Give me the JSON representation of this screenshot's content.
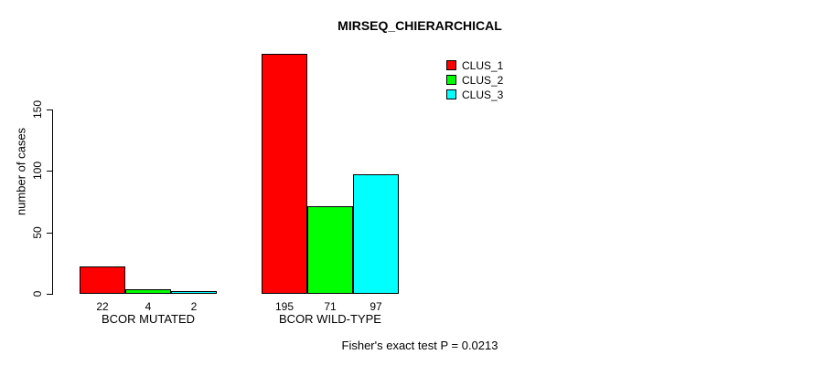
{
  "chart_data": {
    "type": "bar",
    "title": "MIRSEQ_CHIERARCHICAL",
    "ylabel": "number of cases",
    "xlabel": "",
    "annotation": "Fisher's exact test P = 0.0213",
    "categories": [
      "BCOR MUTATED",
      "BCOR WILD-TYPE"
    ],
    "series": [
      {
        "name": "CLUS_1",
        "color": "#FF0000",
        "values": [
          22,
          195
        ]
      },
      {
        "name": "CLUS_2",
        "color": "#00FF00",
        "values": [
          4,
          71
        ]
      },
      {
        "name": "CLUS_3",
        "color": "#00FFFF",
        "values": [
          2,
          97
        ]
      }
    ],
    "bar_value_labels": [
      [
        "22",
        "4",
        "2"
      ],
      [
        "195",
        "71",
        "97"
      ]
    ],
    "yticks": [
      "0",
      "50",
      "100",
      "150"
    ],
    "ylim": [
      0,
      200
    ],
    "grid": false,
    "legend_position": "top-right",
    "background": "#FFFFFF",
    "axis_color": "#000000"
  }
}
